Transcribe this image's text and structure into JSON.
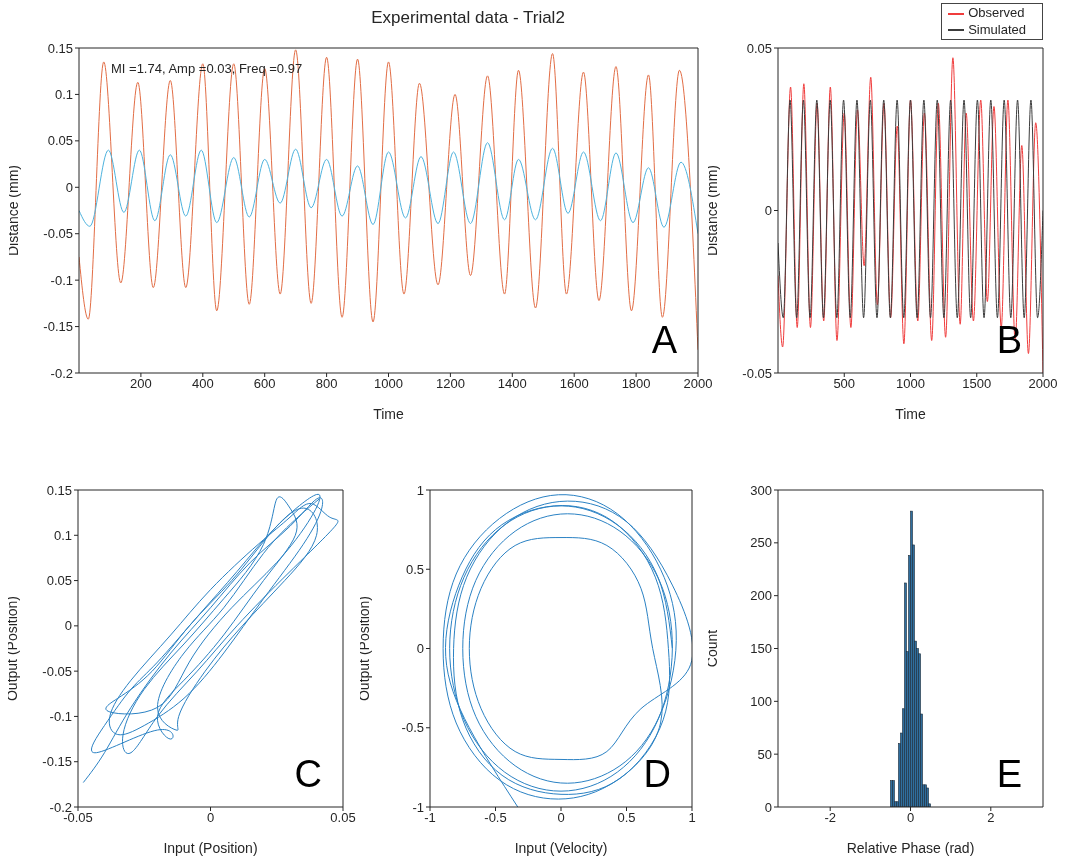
{
  "chart_data": [
    {
      "type": "line",
      "title": "Experimental data - Trial2",
      "xlabel": "Time",
      "ylabel": "Distance (mm)",
      "xlim": [
        0,
        2000
      ],
      "xticks": [
        200,
        400,
        600,
        800,
        1000,
        1200,
        1400,
        1600,
        1800,
        2000
      ],
      "ylim": [
        -0.2,
        0.15
      ],
      "yticks": [
        -0.2,
        -0.15,
        -0.1,
        -0.05,
        0,
        0.05,
        0.1,
        0.15
      ],
      "marker": "none",
      "annotations": [
        "MI =1.74, Amp =0.03, Freq =0.97",
        "A"
      ],
      "series": [
        {
          "color": "#e26d45",
          "x": [
            0,
            30,
            80,
            135,
            190,
            240,
            295,
            345,
            400,
            445,
            500,
            550,
            600,
            650,
            700,
            750,
            800,
            850,
            900,
            950,
            1000,
            1050,
            1100,
            1160,
            1215,
            1265,
            1320,
            1375,
            1420,
            1475,
            1530,
            1575,
            1630,
            1680,
            1735,
            1785,
            1840,
            1885,
            1940,
            2000
          ],
          "values": [
            -0.075,
            -0.142,
            0.135,
            -0.103,
            0.113,
            -0.108,
            0.115,
            -0.108,
            0.133,
            -0.133,
            0.133,
            -0.126,
            0.128,
            -0.115,
            0.148,
            -0.125,
            0.14,
            -0.14,
            0.138,
            -0.145,
            0.135,
            -0.115,
            0.112,
            -0.105,
            0.1,
            -0.095,
            0.12,
            -0.115,
            0.126,
            -0.13,
            0.144,
            -0.115,
            0.124,
            -0.122,
            0.13,
            -0.133,
            0.121,
            -0.14,
            0.126,
            -0.175
          ]
        },
        {
          "color": "#4eb3de",
          "x": [
            0,
            35,
            95,
            145,
            195,
            245,
            295,
            345,
            395,
            445,
            500,
            550,
            600,
            650,
            700,
            750,
            800,
            850,
            900,
            950,
            1000,
            1055,
            1105,
            1160,
            1210,
            1265,
            1320,
            1375,
            1420,
            1475,
            1530,
            1580,
            1630,
            1685,
            1735,
            1790,
            1840,
            1890,
            1945,
            2000
          ],
          "values": [
            -0.025,
            -0.042,
            0.04,
            -0.027,
            0.04,
            -0.036,
            0.035,
            -0.031,
            0.04,
            -0.038,
            0.032,
            -0.032,
            0.03,
            -0.017,
            0.041,
            -0.022,
            0.03,
            -0.031,
            0.023,
            -0.04,
            0.038,
            -0.033,
            0.033,
            -0.039,
            0.038,
            -0.039,
            0.048,
            -0.035,
            0.03,
            -0.035,
            0.042,
            -0.028,
            0.038,
            -0.036,
            0.037,
            -0.038,
            0.021,
            -0.043,
            0.027,
            -0.05
          ]
        }
      ]
    },
    {
      "type": "line",
      "xlabel": "Time",
      "ylabel": "Distance (mm)",
      "xlim": [
        0,
        2000
      ],
      "xticks": [
        500,
        1000,
        1500,
        2000
      ],
      "ylim": [
        -0.05,
        0.05
      ],
      "yticks": [
        -0.05,
        0,
        0.05
      ],
      "marker": "none",
      "legend": "top right",
      "annotations": [
        "B"
      ],
      "series": [
        {
          "name": "Observed",
          "color": "#f03c3c",
          "x": [
            0,
            35,
            95,
            145,
            195,
            245,
            295,
            345,
            395,
            445,
            500,
            550,
            600,
            650,
            700,
            750,
            800,
            850,
            900,
            950,
            1000,
            1055,
            1105,
            1160,
            1210,
            1265,
            1320,
            1375,
            1420,
            1475,
            1530,
            1580,
            1630,
            1685,
            1735,
            1790,
            1840,
            1890,
            1945,
            2000
          ],
          "values": [
            -0.02,
            -0.042,
            0.038,
            -0.036,
            0.039,
            -0.036,
            0.033,
            -0.034,
            0.038,
            -0.04,
            0.03,
            -0.036,
            0.031,
            -0.017,
            0.041,
            -0.029,
            0.033,
            -0.033,
            0.026,
            -0.041,
            0.034,
            -0.034,
            0.03,
            -0.04,
            0.033,
            -0.039,
            0.047,
            -0.035,
            0.03,
            -0.034,
            0.034,
            -0.028,
            0.032,
            -0.036,
            0.034,
            -0.04,
            0.02,
            -0.044,
            0.027,
            -0.05
          ]
        },
        {
          "name": "Simulated",
          "color": "#3c3c3c",
          "x": [
            0,
            40,
            91,
            141,
            192,
            242,
            293,
            343,
            394,
            444,
            495,
            545,
            596,
            646,
            697,
            747,
            798,
            848,
            899,
            949,
            1000,
            1050,
            1101,
            1151,
            1202,
            1252,
            1303,
            1353,
            1404,
            1454,
            1505,
            1555,
            1606,
            1656,
            1707,
            1757,
            1808,
            1858,
            1909,
            1959,
            2000
          ],
          "values": [
            -0.01,
            -0.033,
            0.034,
            -0.033,
            0.034,
            -0.033,
            0.034,
            -0.033,
            0.034,
            -0.033,
            0.034,
            -0.033,
            0.034,
            -0.033,
            0.034,
            -0.033,
            0.034,
            -0.033,
            0.034,
            -0.033,
            0.034,
            -0.033,
            0.034,
            -0.033,
            0.034,
            -0.033,
            0.034,
            -0.033,
            0.034,
            -0.033,
            0.034,
            -0.033,
            0.034,
            -0.033,
            0.034,
            -0.033,
            0.034,
            -0.033,
            0.034,
            -0.033,
            0
          ]
        }
      ]
    },
    {
      "type": "line",
      "xlabel": "Input (Position)",
      "ylabel": "Output (Position)",
      "xlim": [
        -0.05,
        0.05
      ],
      "xticks": [
        -0.05,
        0,
        0.05
      ],
      "ylim": [
        -0.2,
        0.15
      ],
      "yticks": [
        -0.2,
        -0.15,
        -0.1,
        -0.05,
        0,
        0.05,
        0.1,
        0.15
      ],
      "marker": "none",
      "annotations": [
        "C"
      ],
      "series": [
        {
          "color": "#2b82c4",
          "x": [
            -0.048,
            -0.04,
            -0.03,
            -0.015,
            0,
            0.015,
            0.03,
            0.04,
            0.042,
            0.035,
            0.02,
            0.005,
            -0.01,
            -0.025,
            -0.035,
            -0.038,
            -0.03,
            -0.015,
            0,
            0.018,
            0.03,
            0.038,
            0.045,
            0.047,
            0.03,
            0.01,
            -0.005,
            -0.02,
            -0.03,
            -0.033,
            -0.025,
            -0.01,
            0.005,
            0.02,
            0.025,
            0.03,
            0.032,
            0.02,
            0.005,
            -0.01,
            -0.02,
            -0.015,
            -0.02,
            -0.043,
            -0.04,
            -0.03,
            -0.02,
            -0.005,
            0.01,
            0.025,
            0.04,
            0.038,
            0.025,
            0.008,
            -0.008,
            -0.02,
            -0.038,
            -0.035,
            -0.022,
            -0.008,
            0.008,
            0.022,
            0.035,
            0.04,
            0.028,
            0.012,
            -0.002,
            -0.012,
            -0.013,
            -0.02,
            -0.01,
            0.005,
            0.02,
            0.033,
            0.041
          ],
          "values": [
            -0.173,
            -0.14,
            -0.09,
            -0.03,
            0.02,
            0.07,
            0.11,
            0.14,
            0.13,
            0.09,
            0.03,
            -0.03,
            -0.08,
            -0.11,
            -0.12,
            -0.1,
            -0.06,
            -0.01,
            0.04,
            0.09,
            0.12,
            0.135,
            0.12,
            0.11,
            0.06,
            0,
            -0.05,
            -0.1,
            -0.14,
            -0.12,
            -0.07,
            -0.02,
            0.03,
            0.09,
            0.14,
            0.13,
            0.1,
            0.05,
            -0.01,
            -0.06,
            -0.1,
            -0.125,
            -0.115,
            -0.14,
            -0.11,
            -0.07,
            -0.04,
            0.01,
            0.06,
            0.11,
            0.145,
            0.12,
            0.07,
            0.02,
            -0.04,
            -0.09,
            -0.095,
            -0.08,
            -0.05,
            0,
            0.05,
            0.1,
            0.13,
            0.1,
            0.05,
            0,
            -0.05,
            -0.1,
            -0.115,
            -0.09,
            -0.03,
            0.02,
            0.08,
            0.12,
            0.14
          ]
        }
      ]
    },
    {
      "type": "line",
      "xlabel": "Input (Velocity)",
      "ylabel": "Output (Position)",
      "xlim": [
        -1,
        1
      ],
      "xticks": [
        -1,
        -0.5,
        0,
        0.5,
        1
      ],
      "ylim": [
        -1,
        1
      ],
      "yticks": [
        -1,
        -0.5,
        0,
        0.5,
        1
      ],
      "marker": "none",
      "annotations": [
        "D"
      ],
      "series": [
        {
          "color": "#2b82c4",
          "x": [
            0.85,
            0.74,
            0.43,
            0,
            -0.43,
            -0.74,
            -0.85,
            -0.74,
            -0.43,
            0,
            0.43,
            0.74,
            0.85,
            0.75,
            0.45,
            0.05,
            -0.35,
            -0.65,
            -0.75,
            -0.65,
            -0.35,
            0.05,
            0.45,
            0.75,
            0.88,
            0.76,
            0.43,
            -0.02,
            -0.47,
            -0.8,
            -0.9,
            -0.8,
            -0.47,
            -0.02,
            0.43,
            0.76,
            0.7,
            0.61,
            0.35,
            0,
            -0.35,
            -0.61,
            -0.7,
            -0.61,
            -0.35,
            0,
            0.35,
            0.61,
            0.99,
            0.85,
            0.5,
            0.05,
            -0.4,
            -0.72,
            -0.82,
            -0.75,
            -0.45,
            0,
            0.45,
            0.78,
            0.82,
            0.72,
            0.4,
            -0.05,
            -0.5,
            -0.78,
            -0.88,
            -0.7,
            -0.33
          ],
          "values": [
            0,
            0.45,
            0.78,
            0.9,
            0.78,
            0.45,
            0,
            -0.45,
            -0.78,
            -0.9,
            -0.78,
            -0.45,
            0,
            0.43,
            0.74,
            0.85,
            0.74,
            0.43,
            0,
            -0.43,
            -0.74,
            -0.85,
            -0.74,
            -0.43,
            0.05,
            0.5,
            0.85,
            0.97,
            0.82,
            0.47,
            0,
            -0.47,
            -0.83,
            -0.95,
            -0.83,
            -0.47,
            0,
            0.38,
            0.65,
            0.7,
            0.65,
            0.38,
            0,
            -0.38,
            -0.65,
            -0.7,
            -0.65,
            -0.38,
            -0.1,
            0.4,
            0.8,
            0.93,
            0.8,
            0.45,
            0,
            -0.45,
            -0.8,
            -0.92,
            -0.82,
            -0.45,
            0,
            0.45,
            0.8,
            0.9,
            0.75,
            0.4,
            -0.05,
            -0.5,
            -1
          ]
        }
      ]
    },
    {
      "type": "histogram",
      "xlabel": "Relative Phase (rad)",
      "ylabel": "Count",
      "xlim": [
        -3.3,
        3.3
      ],
      "xticks": [
        -2,
        0,
        2
      ],
      "ylim": [
        0,
        300
      ],
      "yticks": [
        0,
        50,
        100,
        150,
        200,
        250,
        300
      ],
      "color": "#2f6e9e",
      "annotations": [
        "E"
      ],
      "bins": [
        -0.5,
        -0.45,
        -0.4,
        -0.35,
        -0.3,
        -0.25,
        -0.2,
        -0.15,
        -0.1,
        -0.05,
        0,
        0.05,
        0.1,
        0.15,
        0.2,
        0.25,
        0.3,
        0.35,
        0.4,
        0.45,
        0.5
      ],
      "values": [
        25,
        25,
        5,
        5,
        60,
        70,
        93,
        212,
        147,
        238,
        280,
        248,
        157,
        150,
        145,
        88,
        21,
        21,
        18,
        3
      ]
    }
  ]
}
